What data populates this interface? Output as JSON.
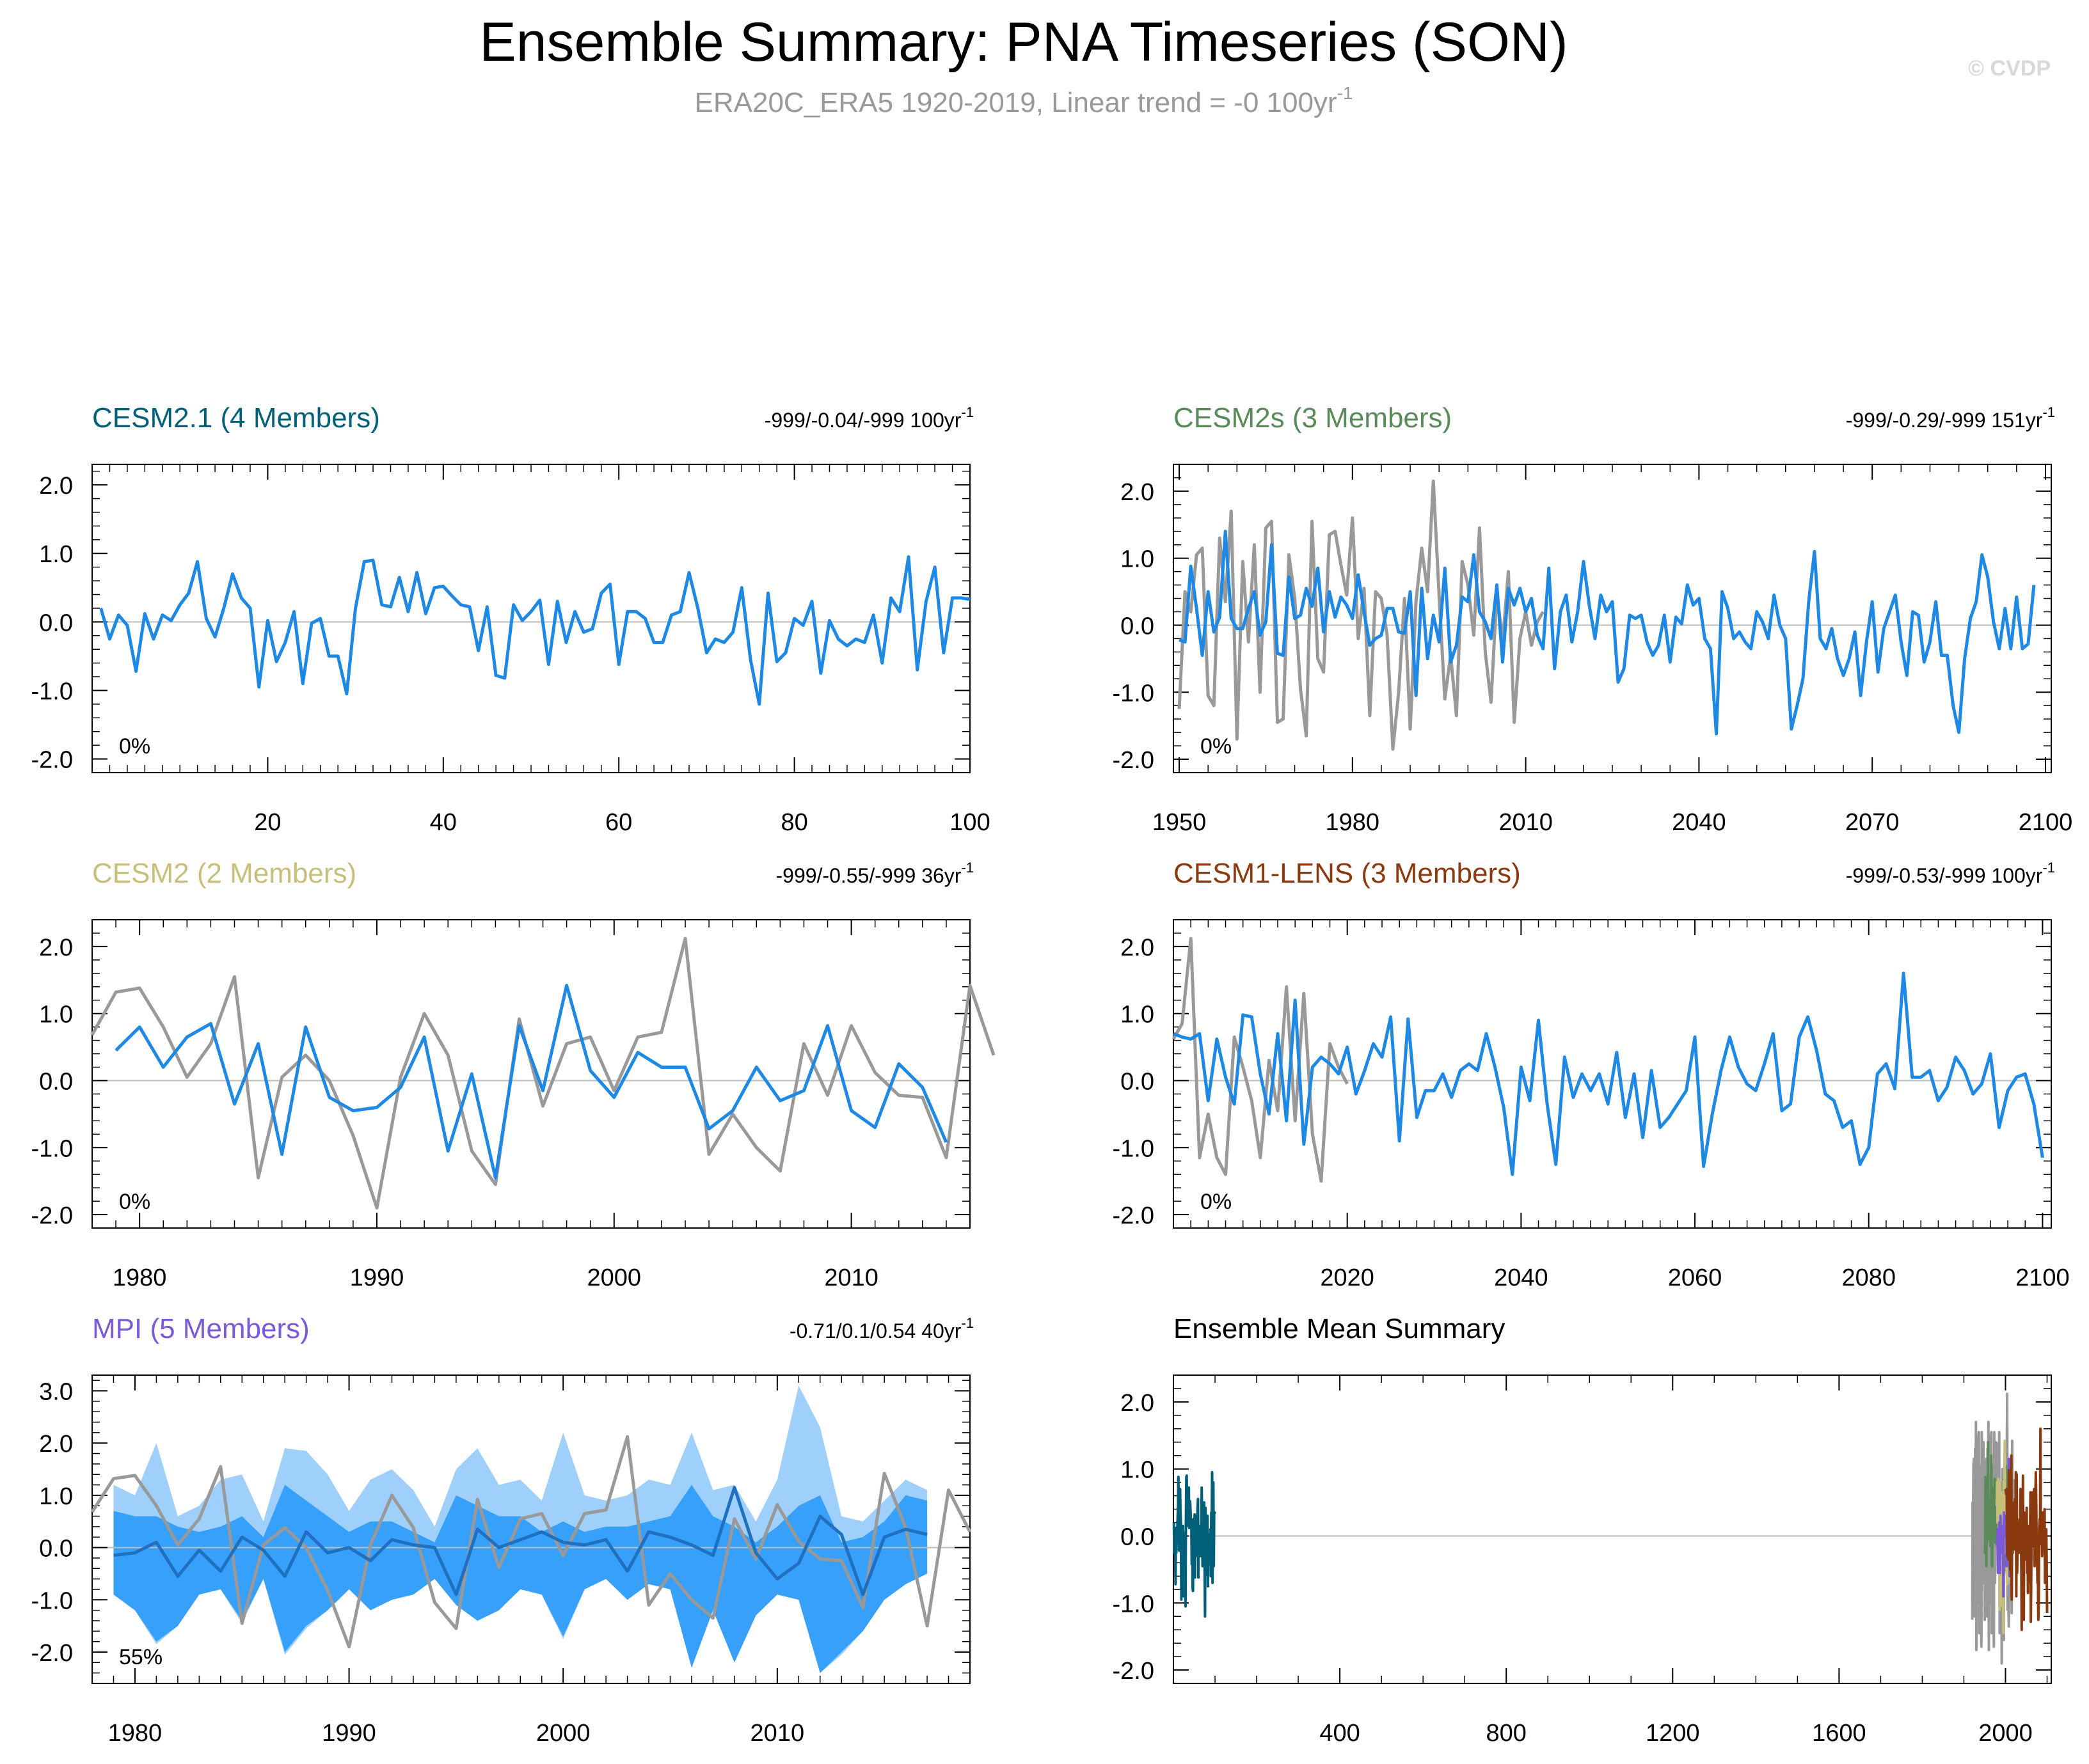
{
  "figure": {
    "title": "Ensemble Summary: PNA Timeseries (SON)",
    "subtitle": "ERA20C_ERA5 1920-2019, Linear trend = -0 100yr",
    "subtitle_sup": "-1",
    "watermark": "© CVDP"
  },
  "colors": {
    "member_line": "#1e88e5",
    "observation_line": "#999999",
    "zero_line": "#bdbdbd",
    "band_outer": "#9fd0fc",
    "band_inner": "#37a0fb",
    "ensemble_mean": "#2070c0",
    "axis": "#000000",
    "cesm21": "#00607a",
    "cesm2s": "#5a8a5a",
    "cesm2": "#c8c07a",
    "cesm1lens": "#8b3a0f",
    "mpi": "#7a5ad8",
    "summary_title": "#000000"
  },
  "chart_data": [
    {
      "id": "cesm21",
      "type": "line",
      "title": "CESM2.1 (4 Members)",
      "stats": "-999/-0.04/-999 100yr",
      "stats_sup": "-1",
      "percent": "0%",
      "xlim": [
        0,
        100
      ],
      "ylim": [
        -2.2,
        2.3
      ],
      "xticks": [
        20,
        40,
        60,
        80,
        100
      ],
      "yticks": [
        -2.0,
        -1.0,
        0.0,
        1.0,
        2.0
      ],
      "ytick_labels": [
        "-2.0",
        "-1.0",
        "0.0",
        "1.0",
        "2.0"
      ],
      "series": [
        {
          "role": "member",
          "x_start": 1,
          "x_step": 1,
          "values": [
            0.2,
            -0.25,
            0.1,
            -0.05,
            -0.72,
            0.12,
            -0.25,
            0.1,
            0.02,
            0.25,
            0.42,
            0.88,
            0.05,
            -0.22,
            0.2,
            0.7,
            0.35,
            0.2,
            -0.95,
            0.02,
            -0.58,
            -0.3,
            0.15,
            -0.9,
            -0.02,
            0.05,
            -0.5,
            -0.5,
            -1.05,
            0.2,
            0.88,
            0.9,
            0.25,
            0.22,
            0.65,
            0.15,
            0.72,
            0.12,
            0.5,
            0.52,
            0.38,
            0.25,
            0.22,
            -0.42,
            0.22,
            -0.78,
            -0.82,
            0.25,
            0.02,
            0.15,
            0.32,
            -0.62,
            0.3,
            -0.3,
            0.15,
            -0.15,
            -0.1,
            0.42,
            0.55,
            -0.62,
            0.15,
            0.15,
            0.05,
            -0.3,
            -0.3,
            0.1,
            0.15,
            0.72,
            0.2,
            -0.45,
            -0.25,
            -0.3,
            -0.15,
            0.5,
            -0.55,
            -1.2,
            0.42,
            -0.58,
            -0.45,
            0.05,
            -0.05,
            0.3,
            -0.75,
            0.02,
            -0.25,
            -0.35,
            -0.25,
            -0.3,
            0.1,
            -0.6,
            0.35,
            0.15,
            0.95,
            -0.7,
            0.3,
            0.8,
            -0.45,
            0.35,
            0.35,
            0.33
          ]
        }
      ]
    },
    {
      "id": "cesm2s",
      "type": "line",
      "title": "CESM2s (3 Members)",
      "stats": "-999/-0.29/-999 151yr",
      "stats_sup": "-1",
      "percent": "0%",
      "xlim": [
        1949,
        2101
      ],
      "ylim": [
        -2.2,
        2.4
      ],
      "xticks": [
        1950,
        1980,
        2010,
        2040,
        2070,
        2100
      ],
      "yticks": [
        -2.0,
        -1.0,
        0.0,
        1.0,
        2.0
      ],
      "ytick_labels": [
        "-2.0",
        "-1.0",
        "0.0",
        "1.0",
        "2.0"
      ],
      "series": [
        {
          "role": "observation",
          "x_start": 1950,
          "x_step": 1,
          "values": [
            -1.25,
            0.5,
            0.2,
            1.05,
            1.15,
            -1.05,
            -1.2,
            1.3,
            0.35,
            1.7,
            -1.7,
            0.95,
            -0.25,
            1.2,
            -1.0,
            1.45,
            1.55,
            -1.45,
            -1.4,
            1.05,
            0.4,
            -0.95,
            -1.65,
            1.55,
            -0.5,
            -0.7,
            1.35,
            1.4,
            0.9,
            0.45,
            1.6,
            -0.2,
            0.55,
            -1.35,
            0.5,
            0.4,
            -0.15,
            -1.85,
            -1.0,
            0.4,
            -1.55,
            0.35,
            1.15,
            0.5,
            2.15,
            0.45,
            -1.1,
            -0.45,
            -1.35,
            0.95,
            0.6,
            -0.15,
            1.45,
            -0.4,
            -1.15,
            0.5,
            -0.25,
            0.8,
            -1.45,
            -0.2,
            0.2,
            -0.3,
            0.05,
            0.2
          ]
        },
        {
          "role": "member",
          "x_start": 1950,
          "x_step": 1,
          "values": [
            -0.22,
            -0.25,
            0.88,
            0.25,
            -0.45,
            0.5,
            -0.1,
            0.12,
            1.4,
            0.1,
            -0.05,
            -0.05,
            0.25,
            0.5,
            -0.15,
            0.05,
            1.2,
            -0.42,
            -0.45,
            0.72,
            0.1,
            0.15,
            0.55,
            0.28,
            0.85,
            -0.1,
            0.5,
            0.12,
            0.42,
            0.3,
            0.1,
            0.75,
            0.2,
            -0.3,
            -0.2,
            -0.15,
            0.25,
            0.25,
            -0.1,
            -0.12,
            0.5,
            -1.05,
            0.55,
            -0.5,
            0.15,
            -0.25,
            0.85,
            -0.55,
            -0.3,
            0.42,
            0.35,
            1.05,
            0.2,
            0.05,
            -0.2,
            0.6,
            -0.55,
            0.55,
            0.3,
            0.55,
            0.2,
            0.4,
            -0.15,
            -0.35,
            0.85,
            -0.65,
            0.2,
            0.45,
            -0.25,
            0.2,
            0.95,
            0.3,
            -0.2,
            0.45,
            0.2,
            0.35,
            -0.85,
            -0.65,
            0.15,
            0.1,
            0.15,
            -0.25,
            -0.45,
            -0.3,
            0.15,
            -0.55,
            0.12,
            0.02,
            0.6,
            0.3,
            0.4,
            -0.2,
            -0.35,
            -1.62,
            0.5,
            0.25,
            -0.2,
            -0.1,
            -0.25,
            -0.35,
            0.2,
            0.05,
            -0.2,
            0.45,
            0.0,
            -0.2,
            -1.55,
            -1.2,
            -0.8,
            0.35,
            1.1,
            -0.2,
            -0.35,
            -0.05,
            -0.5,
            -0.75,
            -0.5,
            -0.1,
            -1.05,
            -0.25,
            0.35,
            -0.7,
            -0.05,
            0.2,
            0.45,
            -0.25,
            -0.75,
            0.2,
            0.15,
            -0.55,
            -0.25,
            0.35,
            -0.45,
            -0.45,
            -1.2,
            -1.6,
            -0.5,
            0.1,
            0.35,
            1.05,
            0.72,
            0.05,
            -0.35,
            0.25,
            -0.35,
            0.42,
            -0.35,
            -0.28,
            0.6
          ]
        }
      ]
    },
    {
      "id": "cesm2",
      "type": "line",
      "title": "CESM2 (2 Members)",
      "stats": "-999/-0.55/-999 36yr",
      "stats_sup": "-1",
      "percent": "0%",
      "xlim": [
        1978,
        2015
      ],
      "ylim": [
        -2.2,
        2.4
      ],
      "xticks": [
        1980,
        1990,
        2000,
        2010
      ],
      "yticks": [
        -2.0,
        -1.0,
        0.0,
        1.0,
        2.0
      ],
      "ytick_labels": [
        "-2.0",
        "-1.0",
        "0.0",
        "1.0",
        "2.0"
      ],
      "series": [
        {
          "role": "observation",
          "x_start": 1978,
          "x_step": 1,
          "values": [
            0.68,
            1.32,
            1.38,
            0.8,
            0.05,
            0.55,
            1.55,
            -1.45,
            0.05,
            0.38,
            0.0,
            -0.82,
            -1.9,
            0.05,
            1.0,
            0.38,
            -1.05,
            -1.55,
            0.92,
            -0.38,
            0.55,
            0.65,
            -0.15,
            0.65,
            0.72,
            2.12,
            -1.1,
            -0.5,
            -1.0,
            -1.35,
            0.55,
            -0.22,
            0.82,
            0.12,
            -0.22,
            -0.25,
            -1.15,
            1.42,
            0.38
          ]
        },
        {
          "role": "member",
          "x_start": 1979,
          "x_step": 1,
          "values": [
            0.45,
            0.8,
            0.2,
            0.65,
            0.85,
            -0.35,
            0.55,
            -1.1,
            0.8,
            -0.25,
            -0.45,
            -0.4,
            -0.1,
            0.65,
            -1.05,
            0.1,
            -1.45,
            0.82,
            -0.15,
            1.42,
            0.15,
            -0.25,
            0.42,
            0.2,
            0.2,
            -0.72,
            -0.45,
            0.2,
            -0.3,
            -0.15,
            0.82,
            -0.45,
            -0.7,
            0.25,
            -0.1,
            -0.92
          ]
        }
      ]
    },
    {
      "id": "cesm1lens",
      "type": "line",
      "title": "CESM1-LENS (3 Members)",
      "stats": "-999/-0.53/-999 100yr",
      "stats_sup": "-1",
      "percent": "0%",
      "xlim": [
        2000,
        2101
      ],
      "ylim": [
        -2.2,
        2.4
      ],
      "xticks": [
        2020,
        2040,
        2060,
        2080,
        2100
      ],
      "yticks": [
        -2.0,
        -1.0,
        0.0,
        1.0,
        2.0
      ],
      "ytick_labels": [
        "-2.0",
        "-1.0",
        "0.0",
        "1.0",
        "2.0"
      ],
      "series": [
        {
          "role": "observation",
          "x_start": 2000,
          "x_step": 1,
          "values": [
            0.62,
            0.85,
            2.12,
            -1.15,
            -0.5,
            -1.15,
            -1.4,
            0.65,
            0.2,
            -0.3,
            -1.15,
            0.3,
            -0.45,
            1.4,
            -0.6,
            1.3,
            -0.8,
            -1.5,
            0.55,
            0.2,
            -0.05
          ]
        },
        {
          "role": "member",
          "x_start": 2000,
          "x_step": 1,
          "values": [
            0.7,
            0.65,
            0.62,
            0.7,
            -0.3,
            0.62,
            0.05,
            -0.35,
            0.98,
            0.95,
            0.1,
            -0.5,
            0.7,
            -0.6,
            1.2,
            -0.95,
            0.2,
            0.35,
            0.25,
            0.1,
            0.5,
            -0.2,
            0.15,
            0.55,
            0.35,
            0.95,
            -0.9,
            0.92,
            -0.55,
            -0.15,
            -0.15,
            0.1,
            -0.25,
            0.15,
            0.25,
            0.15,
            0.7,
            0.2,
            -0.4,
            -1.4,
            0.2,
            -0.3,
            0.9,
            -0.35,
            -1.25,
            0.35,
            -0.25,
            0.1,
            -0.15,
            0.1,
            -0.35,
            0.42,
            -0.55,
            0.1,
            -0.85,
            0.15,
            -0.7,
            -0.55,
            -0.35,
            -0.15,
            0.65,
            -1.28,
            -0.5,
            0.15,
            0.65,
            0.2,
            -0.05,
            -0.15,
            0.25,
            0.7,
            -0.45,
            -0.35,
            0.65,
            0.95,
            0.45,
            -0.2,
            -0.3,
            -0.7,
            -0.6,
            -1.25,
            -1.0,
            0.1,
            0.25,
            -0.12,
            1.6,
            0.05,
            0.05,
            0.15,
            -0.3,
            -0.1,
            0.35,
            0.15,
            -0.2,
            -0.05,
            0.4,
            -0.7,
            -0.15,
            0.05,
            0.1,
            -0.35,
            -1.15
          ]
        }
      ]
    },
    {
      "id": "mpi",
      "type": "area",
      "title": "MPI (5 Members)",
      "stats": "-0.71/0.1/0.54 40yr",
      "stats_sup": "-1",
      "percent": "55%",
      "xlim": [
        1978,
        2019
      ],
      "ylim": [
        -2.6,
        3.3
      ],
      "xticks": [
        1980,
        1990,
        2000,
        2010
      ],
      "yticks": [
        -2.0,
        -1.0,
        0.0,
        1.0,
        2.0,
        3.0
      ],
      "ytick_labels": [
        "-2.0",
        "-1.0",
        "0.0",
        "1.0",
        "2.0",
        "3.0"
      ],
      "band_x_start": 1979,
      "band_outer_upper": [
        1.2,
        1.0,
        2.0,
        0.6,
        0.8,
        1.3,
        1.4,
        0.5,
        1.9,
        1.85,
        1.4,
        0.7,
        1.3,
        1.5,
        1.1,
        0.4,
        1.5,
        1.9,
        1.2,
        1.3,
        0.9,
        2.2,
        1.0,
        0.9,
        1.0,
        1.3,
        1.2,
        2.2,
        1.1,
        1.2,
        0.5,
        1.3,
        3.1,
        2.3,
        0.6,
        0.5,
        0.9,
        1.3,
        1.1
      ],
      "band_inner_upper": [
        0.7,
        0.6,
        0.6,
        0.4,
        0.3,
        0.4,
        0.6,
        0.2,
        1.2,
        0.9,
        0.6,
        0.3,
        0.5,
        0.5,
        0.3,
        0.1,
        1.0,
        0.8,
        0.6,
        0.6,
        0.3,
        0.5,
        0.3,
        0.4,
        0.4,
        0.5,
        0.6,
        1.2,
        0.6,
        0.4,
        0.1,
        0.4,
        0.8,
        1.0,
        0.1,
        0.2,
        0.5,
        1.0,
        0.9
      ],
      "band_inner_lower": [
        -0.9,
        -1.2,
        -1.8,
        -1.5,
        -0.9,
        -0.8,
        -1.4,
        -0.6,
        -2.0,
        -1.5,
        -1.2,
        -0.8,
        -1.2,
        -1.0,
        -0.9,
        -0.6,
        -1.1,
        -1.4,
        -1.2,
        -0.8,
        -0.9,
        -1.7,
        -0.8,
        -0.6,
        -1.0,
        -0.7,
        -0.8,
        -2.3,
        -1.2,
        -2.2,
        -1.3,
        -0.9,
        -1.0,
        -2.4,
        -2.0,
        -1.6,
        -1.0,
        -0.7,
        -0.5
      ],
      "band_outer_lower": [
        -0.9,
        -1.2,
        -1.85,
        -1.5,
        -0.9,
        -0.8,
        -1.45,
        -0.6,
        -2.05,
        -1.55,
        -1.2,
        -0.8,
        -1.2,
        -1.0,
        -0.9,
        -0.6,
        -1.1,
        -1.4,
        -1.2,
        -0.8,
        -0.9,
        -1.75,
        -0.8,
        -0.6,
        -1.0,
        -0.7,
        -0.8,
        -2.3,
        -1.2,
        -2.2,
        -1.3,
        -0.9,
        -1.0,
        -2.4,
        -2.05,
        -1.6,
        -1.0,
        -0.7,
        -0.5
      ],
      "series": [
        {
          "role": "observation",
          "x_start": 1978,
          "x_step": 1,
          "values": [
            0.68,
            1.32,
            1.38,
            0.8,
            0.05,
            0.55,
            1.55,
            -1.45,
            0.05,
            0.38,
            0.0,
            -0.82,
            -1.9,
            0.05,
            1.0,
            0.38,
            -1.05,
            -1.55,
            0.92,
            -0.38,
            0.55,
            0.65,
            -0.15,
            0.65,
            0.72,
            2.12,
            -1.1,
            -0.5,
            -1.0,
            -1.35,
            0.55,
            -0.22,
            0.82,
            0.12,
            -0.22,
            -0.25,
            -1.15,
            1.42,
            0.38,
            -1.5,
            1.1,
            0.3
          ]
        },
        {
          "role": "ensemble_mean",
          "x_start": 1979,
          "x_step": 1,
          "values": [
            -0.15,
            -0.1,
            0.1,
            -0.55,
            -0.05,
            -0.45,
            0.2,
            -0.05,
            -0.55,
            0.3,
            -0.1,
            0.0,
            -0.25,
            0.15,
            0.05,
            0.0,
            -0.9,
            0.35,
            0.0,
            0.15,
            0.3,
            0.1,
            0.05,
            0.15,
            -0.45,
            0.3,
            0.2,
            0.05,
            -0.15,
            1.15,
            -0.1,
            -0.6,
            -0.3,
            0.6,
            0.25,
            -0.9,
            0.2,
            0.35,
            0.25
          ]
        }
      ]
    },
    {
      "id": "summary",
      "type": "line",
      "title": "Ensemble Mean Summary",
      "xlim": [
        0,
        2110
      ],
      "ylim": [
        -2.2,
        2.4
      ],
      "xticks": [
        400,
        800,
        1200,
        1600,
        2000
      ],
      "yticks": [
        -2.0,
        -1.0,
        0.0,
        1.0,
        2.0
      ],
      "ytick_labels": [
        "-2.0",
        "-1.0",
        "0.0",
        "1.0",
        "2.0"
      ],
      "series": [
        {
          "name_ref": "cesm21",
          "color_key": "cesm21",
          "x_start": 1,
          "x_step": 1,
          "source": "cesm21.member"
        },
        {
          "name_ref": "observation",
          "color_key": "observation_line",
          "x_start": 1920,
          "x_step": 1,
          "source": "cesm2.observation_long"
        },
        {
          "name_ref": "cesm2s",
          "color_key": "cesm2s",
          "x_start": 1950,
          "x_step": 1,
          "source": "cesm2s.member"
        },
        {
          "name_ref": "cesm2",
          "color_key": "cesm2",
          "x_start": 1979,
          "x_step": 1,
          "source": "cesm2.member"
        },
        {
          "name_ref": "mpi",
          "color_key": "mpi",
          "x_start": 1979,
          "x_step": 1,
          "source": "mpi.ensemble_mean"
        },
        {
          "name_ref": "cesm1lens",
          "color_key": "cesm1lens",
          "x_start": 2000,
          "x_step": 1,
          "source": "cesm1lens.member"
        }
      ]
    }
  ]
}
